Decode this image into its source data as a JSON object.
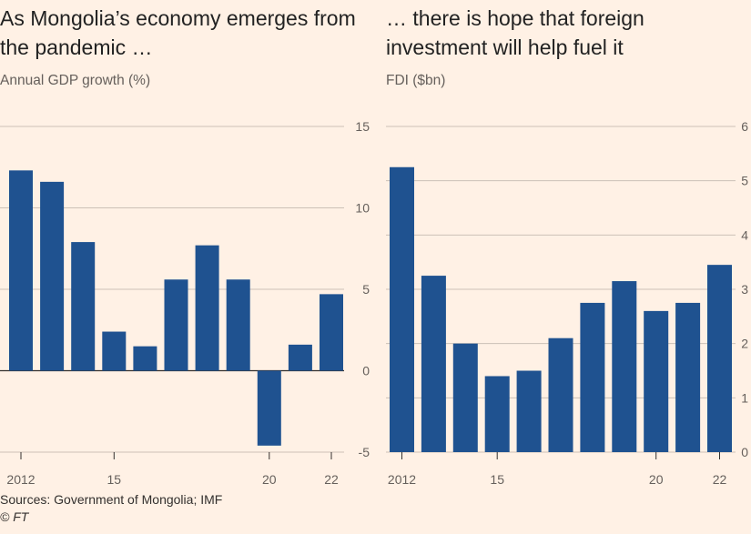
{
  "chart_data": [
    {
      "type": "bar",
      "title": "As Mongolia’s economy emerges from the pandemic …",
      "subtitle": "Annual GDP growth (%)",
      "x": [
        2012,
        2013,
        2014,
        2015,
        2016,
        2017,
        2018,
        2019,
        2020,
        2021,
        2022
      ],
      "values": [
        12.3,
        11.6,
        7.9,
        2.4,
        1.5,
        5.6,
        7.7,
        5.6,
        -4.6,
        1.6,
        4.7
      ],
      "x_tick_labels": [
        {
          "x": 2012,
          "label": "2012"
        },
        {
          "x": 2015,
          "label": "15"
        },
        {
          "x": 2020,
          "label": "20"
        },
        {
          "x": 2022,
          "label": "22"
        }
      ],
      "y_ticks": [
        -5,
        0,
        5,
        10,
        15
      ],
      "ylim": [
        -5,
        15
      ],
      "y_axis_side": "right",
      "grid": true,
      "color": "#1f5290"
    },
    {
      "type": "bar",
      "title": "… there is hope that foreign investment will help fuel it",
      "subtitle": "FDI ($bn)",
      "x": [
        2012,
        2013,
        2014,
        2015,
        2016,
        2017,
        2018,
        2019,
        2020,
        2021,
        2022
      ],
      "values": [
        5.25,
        3.25,
        2.0,
        1.4,
        1.5,
        2.1,
        2.75,
        3.15,
        2.6,
        2.75,
        3.45
      ],
      "x_tick_labels": [
        {
          "x": 2012,
          "label": "2012"
        },
        {
          "x": 2015,
          "label": "15"
        },
        {
          "x": 2020,
          "label": "20"
        },
        {
          "x": 2022,
          "label": "22"
        }
      ],
      "y_ticks": [
        0,
        1,
        2,
        3,
        4,
        5,
        6
      ],
      "ylim": [
        0,
        6
      ],
      "y_axis_side": "right",
      "grid": true,
      "color": "#1f5290"
    }
  ],
  "footer": {
    "source": "Sources: Government of Mongolia; IMF",
    "credit": "© FT"
  },
  "colors": {
    "background": "#fff1e5",
    "bar": "#1f5290",
    "grid": "#ccc1b7",
    "zero_line": "#33302e"
  }
}
